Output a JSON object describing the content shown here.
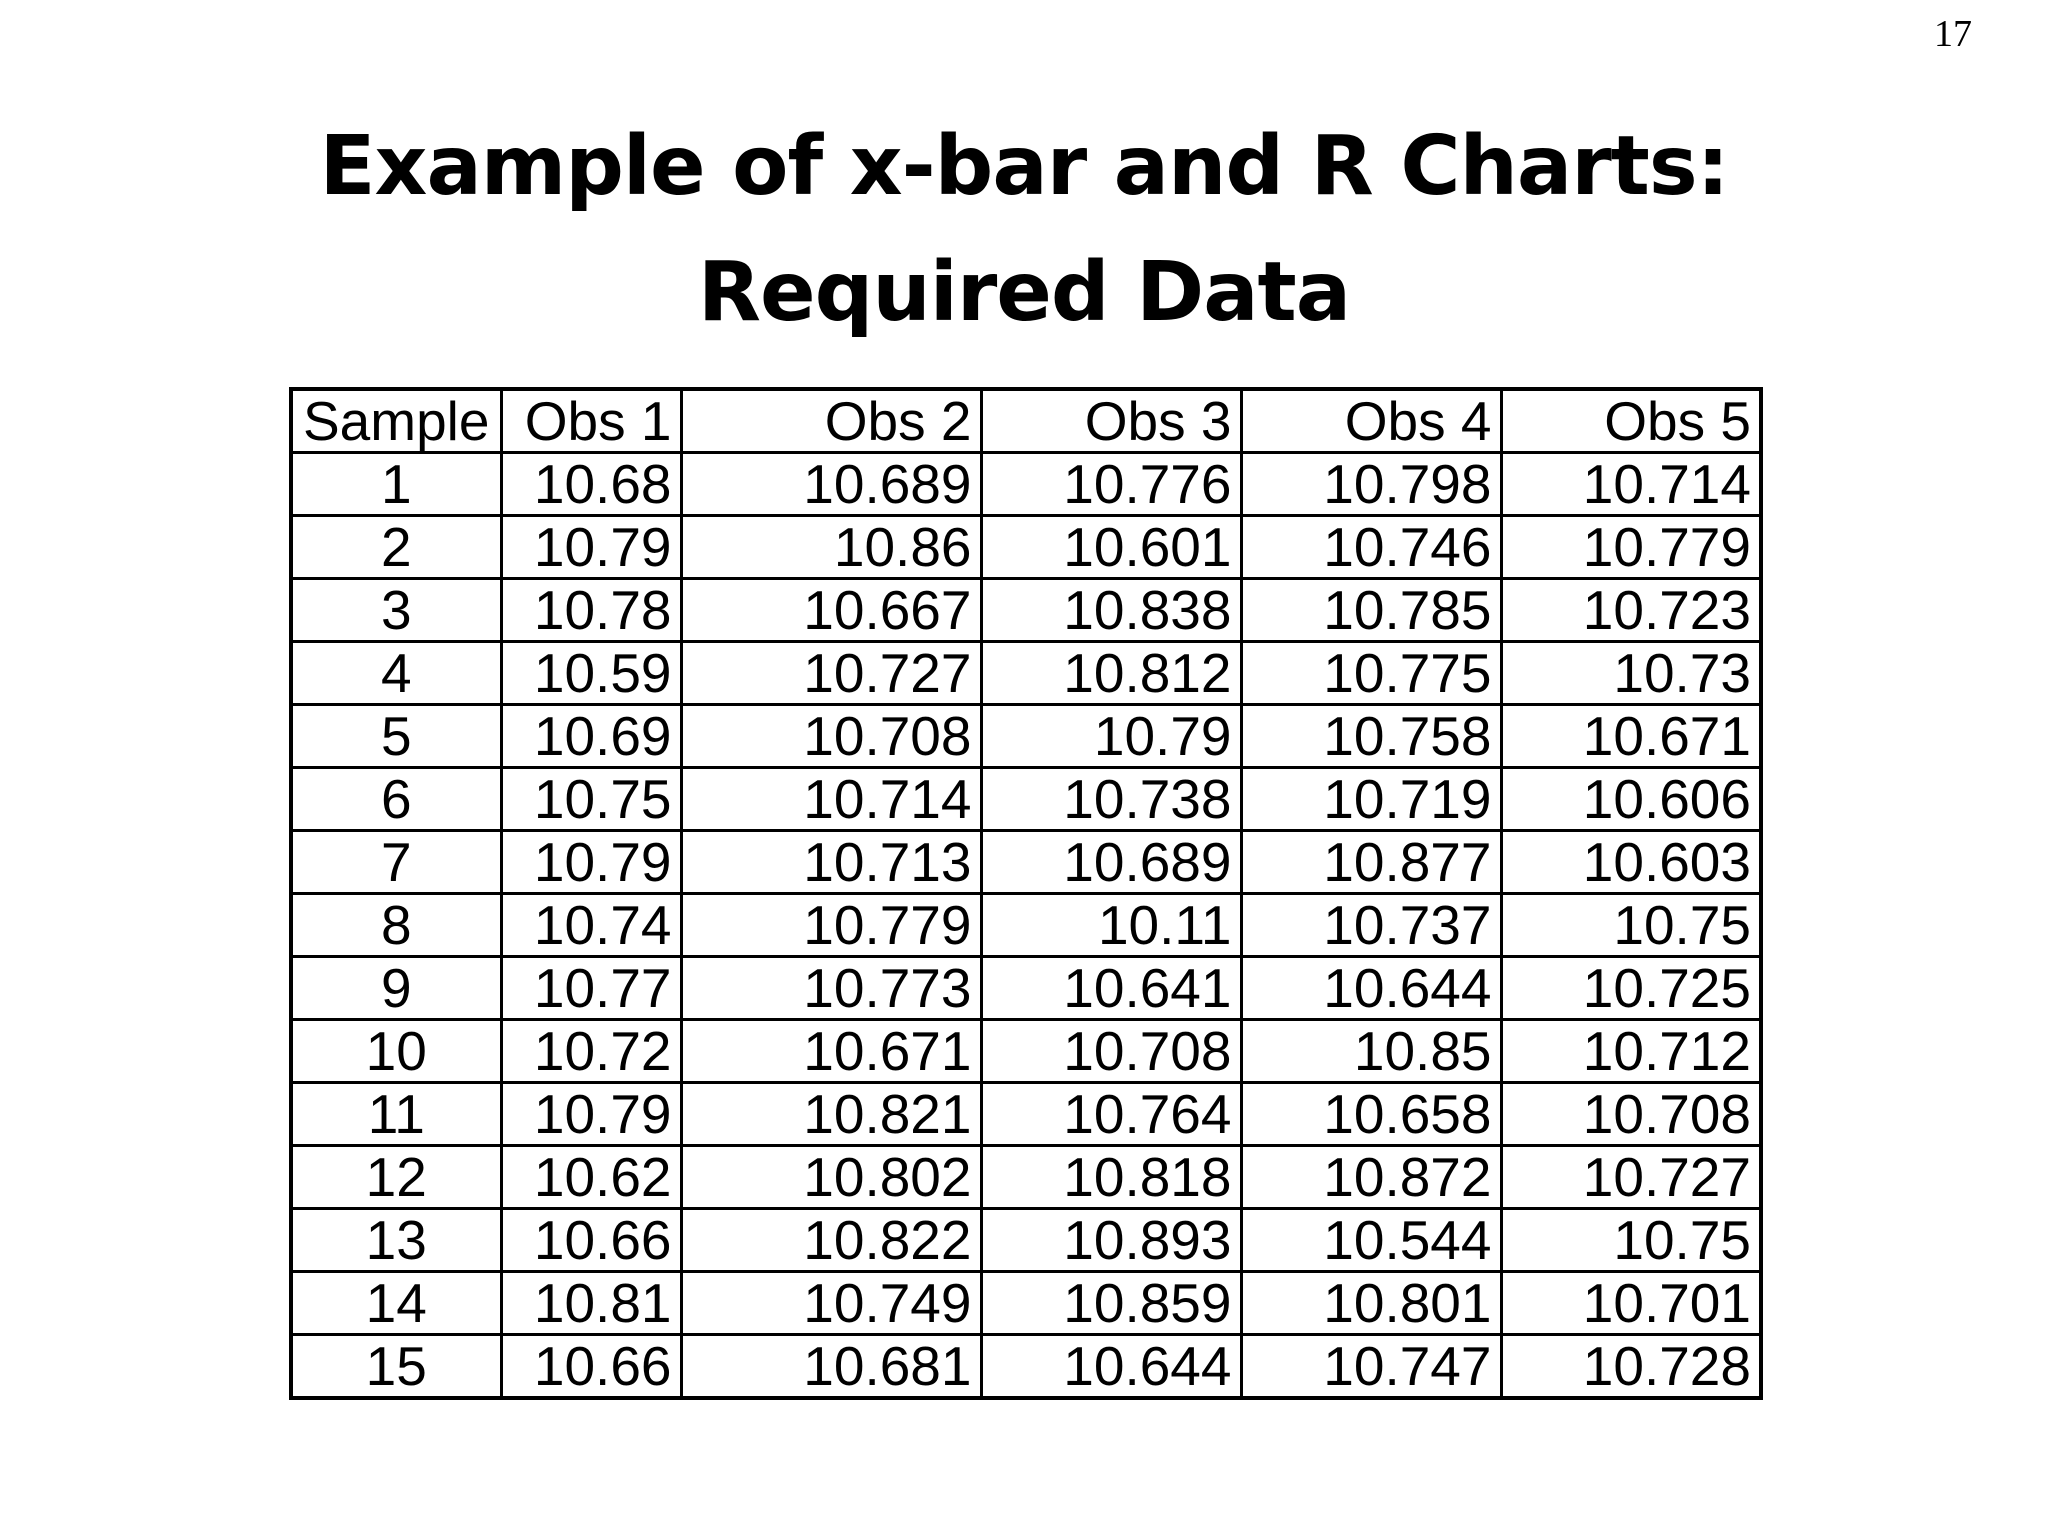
{
  "page_number": "17",
  "title": {
    "line1": "Example of x-bar and R Charts:",
    "line2": "Required Data"
  },
  "table": {
    "headers": [
      "Sample",
      "Obs 1",
      "Obs 2",
      "Obs 3",
      "Obs 4",
      "Obs 5"
    ],
    "rows": [
      [
        "1",
        "10.68",
        "10.689",
        "10.776",
        "10.798",
        "10.714"
      ],
      [
        "2",
        "10.79",
        "10.86",
        "10.601",
        "10.746",
        "10.779"
      ],
      [
        "3",
        "10.78",
        "10.667",
        "10.838",
        "10.785",
        "10.723"
      ],
      [
        "4",
        "10.59",
        "10.727",
        "10.812",
        "10.775",
        "10.73"
      ],
      [
        "5",
        "10.69",
        "10.708",
        "10.79",
        "10.758",
        "10.671"
      ],
      [
        "6",
        "10.75",
        "10.714",
        "10.738",
        "10.719",
        "10.606"
      ],
      [
        "7",
        "10.79",
        "10.713",
        "10.689",
        "10.877",
        "10.603"
      ],
      [
        "8",
        "10.74",
        "10.779",
        "10.11",
        "10.737",
        "10.75"
      ],
      [
        "9",
        "10.77",
        "10.773",
        "10.641",
        "10.644",
        "10.725"
      ],
      [
        "10",
        "10.72",
        "10.671",
        "10.708",
        "10.85",
        "10.712"
      ],
      [
        "11",
        "10.79",
        "10.821",
        "10.764",
        "10.658",
        "10.708"
      ],
      [
        "12",
        "10.62",
        "10.802",
        "10.818",
        "10.872",
        "10.727"
      ],
      [
        "13",
        "10.66",
        "10.822",
        "10.893",
        "10.544",
        "10.75"
      ],
      [
        "14",
        "10.81",
        "10.749",
        "10.859",
        "10.801",
        "10.701"
      ],
      [
        "15",
        "10.66",
        "10.681",
        "10.644",
        "10.747",
        "10.728"
      ]
    ]
  }
}
